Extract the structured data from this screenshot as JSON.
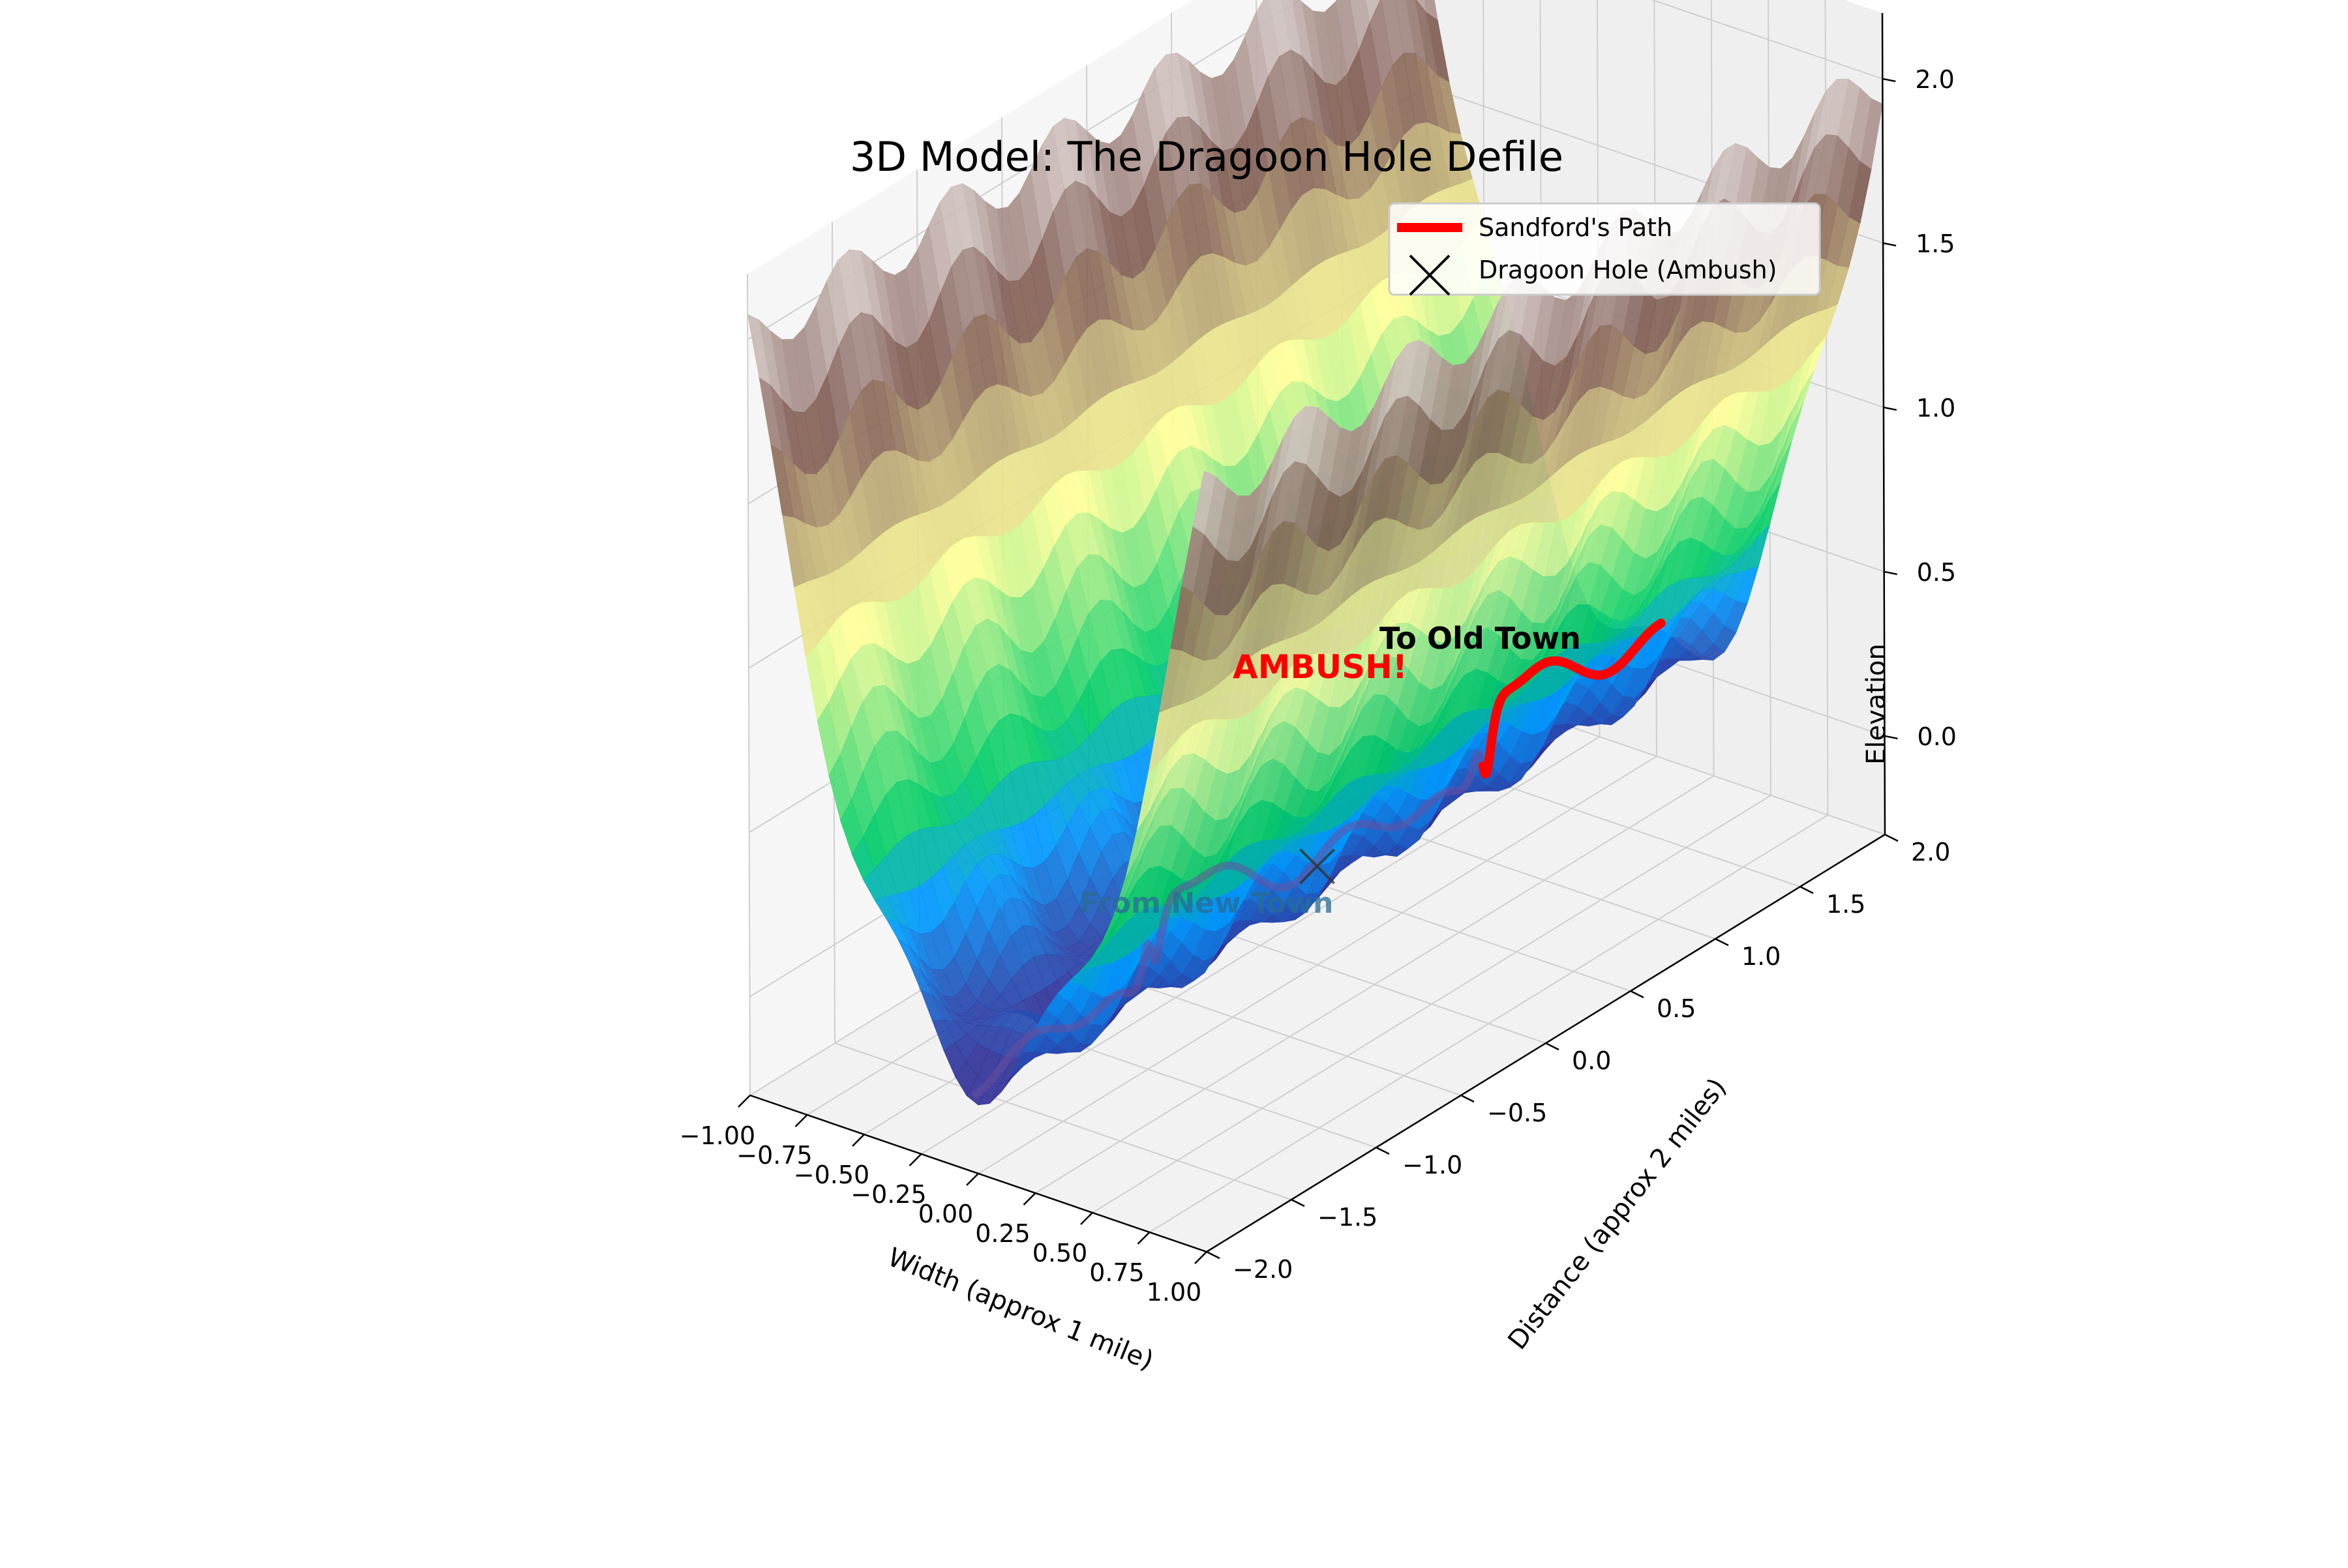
{
  "chart_data": {
    "type": "surface3d",
    "title": "3D Model: The Dragoon Hole Defile",
    "xlabel": "Width (approx 1 mile)",
    "ylabel": "Distance (approx 2 miles)",
    "zlabel": "Elevation",
    "x_ticks": [
      "−1.00",
      "−0.75",
      "−0.50",
      "−0.25",
      "0.00",
      "0.25",
      "0.50",
      "0.75",
      "1.00"
    ],
    "y_ticks": [
      "−2.0",
      "−1.5",
      "−1.0",
      "−0.5",
      "0.0",
      "0.5",
      "1.0",
      "1.5",
      "2.0"
    ],
    "z_ticks": [
      "0.0",
      "0.5",
      "1.0",
      "1.5",
      "2.0"
    ],
    "xlim": [
      -1.0,
      1.0
    ],
    "ylim": [
      -2.0,
      2.0
    ],
    "zlim": [
      -0.3,
      2.2
    ],
    "surface": {
      "colormap": "terrain",
      "formula": "z = 2x^2 + 0.1 sin(10y) cos(10x)",
      "valley_floor": 0.0,
      "rim_elevation": 2.0
    },
    "series": [
      {
        "name": "Sandford's Path",
        "color": "#ff0000",
        "style": "line"
      },
      {
        "name": "Dragoon Hole (Ambush)",
        "color": "#000000",
        "style": "x-marker",
        "point": {
          "x": 0.0,
          "y": 0.0,
          "z": 0.0
        }
      }
    ],
    "annotations": [
      {
        "text": "AMBUSH!",
        "color": "#ff0000"
      },
      {
        "text": "To Old Town",
        "color": "#000000"
      },
      {
        "text": "From New Town",
        "color": "#1f77b4"
      }
    ],
    "legend_position": "top-right",
    "grid": true
  }
}
